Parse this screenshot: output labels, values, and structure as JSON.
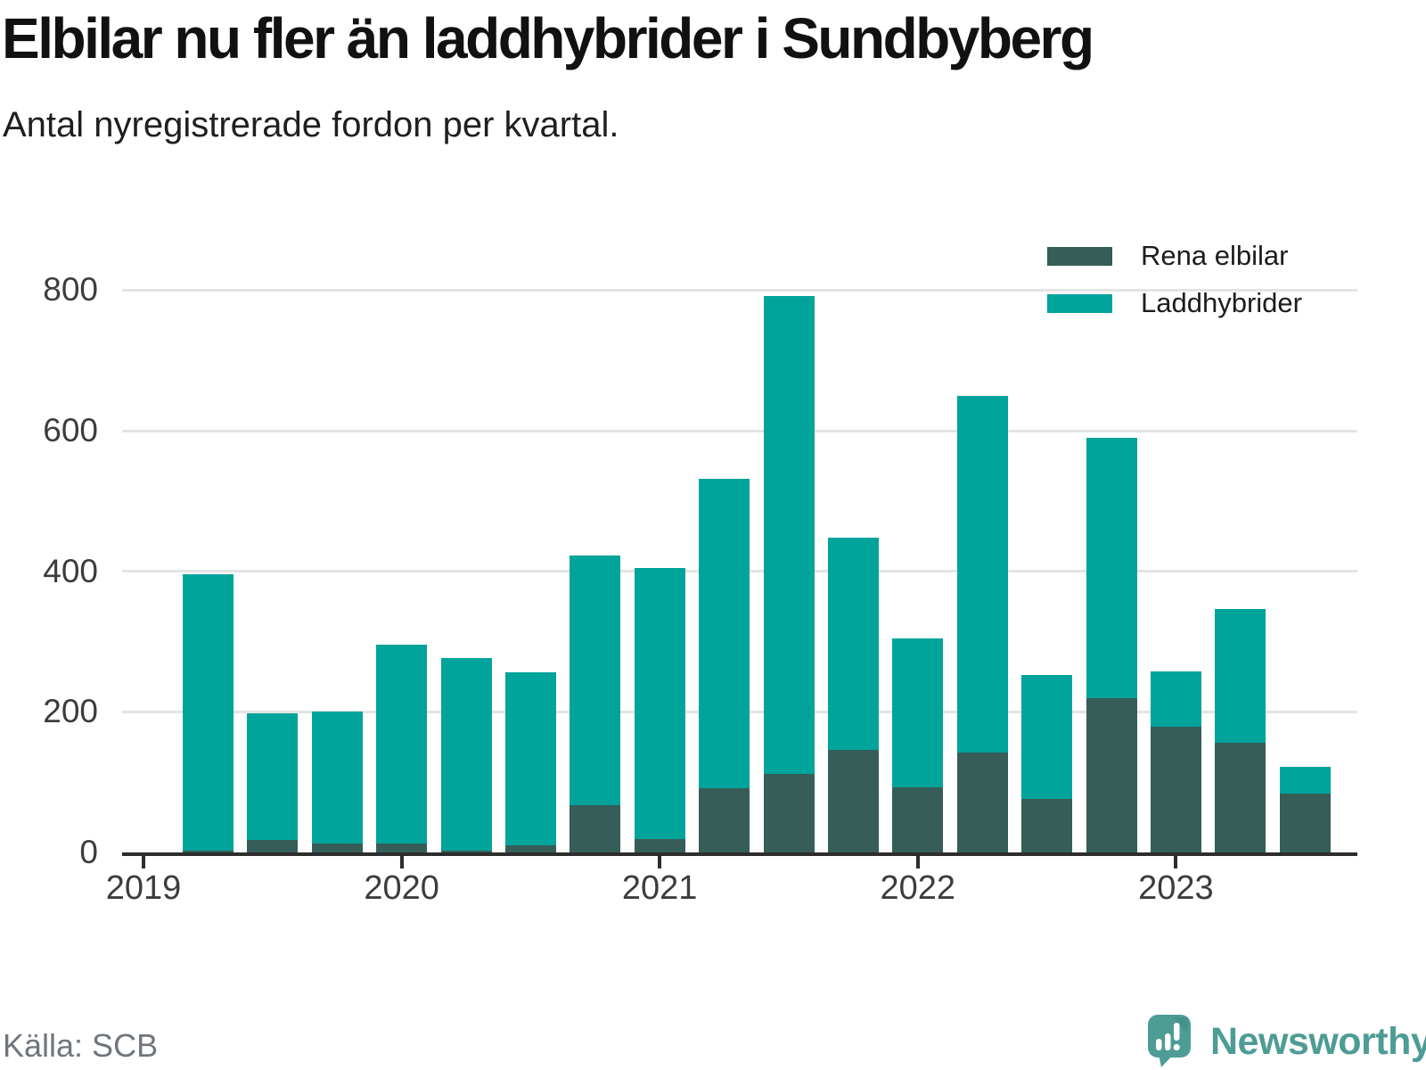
{
  "header": {
    "title": "Elbilar nu fler än laddhybrider i Sundbyberg",
    "subtitle": "Antal nyregistrerade fordon per kvartal."
  },
  "legend": {
    "items": [
      {
        "label": "Rena elbilar",
        "color": "#365d58"
      },
      {
        "label": "Laddhybrider",
        "color": "#00a49b"
      }
    ]
  },
  "footer": {
    "source": "Källa: SCB",
    "logo_text": "Newsworthy"
  },
  "colors": {
    "elbilar": "#365d58",
    "laddhybrider": "#00a49b",
    "grid": "#e4e4e4",
    "axis": "#2d2d2d",
    "logo": "#4d9c95"
  },
  "chart_data": {
    "type": "bar",
    "stacked": true,
    "title": "Elbilar nu fler än laddhybrider i Sundbyberg",
    "subtitle": "Antal nyregistrerade fordon per kvartal.",
    "categories": [
      "2019-Q2",
      "2019-Q3",
      "2019-Q4",
      "2020-Q1",
      "2020-Q2",
      "2020-Q3",
      "2020-Q4",
      "2021-Q1",
      "2021-Q2",
      "2021-Q3",
      "2021-Q4",
      "2022-Q1",
      "2022-Q2",
      "2022-Q3",
      "2022-Q4",
      "2023-Q1",
      "2023-Q2",
      "2023-Q3"
    ],
    "series": [
      {
        "name": "Rena elbilar",
        "color": "#365d58",
        "values": [
          2,
          18,
          13,
          13,
          2,
          10,
          67,
          19,
          91,
          112,
          146,
          93,
          142,
          76,
          219,
          179,
          156,
          84
        ]
      },
      {
        "name": "Laddhybrider",
        "color": "#00a49b",
        "values": [
          394,
          180,
          188,
          282,
          275,
          246,
          355,
          386,
          440,
          680,
          302,
          211,
          508,
          176,
          371,
          78,
          190,
          38
        ]
      }
    ],
    "totals": [
      396,
      198,
      201,
      295,
      277,
      256,
      422,
      405,
      531,
      792,
      448,
      304,
      650,
      252,
      590,
      257,
      346,
      122
    ],
    "year_ticks": [
      "2019",
      "2020",
      "2021",
      "2022",
      "2023"
    ],
    "yticks": [
      0,
      200,
      400,
      600,
      800
    ],
    "ylim": [
      0,
      840
    ],
    "xlabel": "",
    "ylabel": "",
    "grid": "horizontal",
    "legend_position": "top-right",
    "source": "Källa: SCB"
  }
}
